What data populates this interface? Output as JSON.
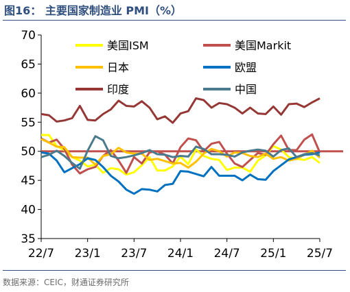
{
  "header": {
    "title": "图16：  主要国家制造业 PMI（%）"
  },
  "footer": {
    "source": "数据来源：CEIC，财通证券研究所"
  },
  "chart_data": {
    "type": "line",
    "ylim": [
      35,
      70
    ],
    "yticks": [
      35,
      40,
      45,
      50,
      55,
      60,
      65,
      70
    ],
    "x_tick_labels": [
      "22/7",
      "23/1",
      "23/7",
      "24/1",
      "24/7",
      "25/1",
      "25/7"
    ],
    "x": [
      "2022-07",
      "2022-08",
      "2022-09",
      "2022-10",
      "2022-11",
      "2022-12",
      "2023-01",
      "2023-02",
      "2023-03",
      "2023-04",
      "2023-05",
      "2023-06",
      "2023-07",
      "2023-08",
      "2023-09",
      "2023-10",
      "2023-11",
      "2023-12",
      "2024-01",
      "2024-02",
      "2024-03",
      "2024-04",
      "2024-05",
      "2024-06",
      "2024-07",
      "2024-08",
      "2024-09",
      "2024-10",
      "2024-11",
      "2024-12",
      "2025-01",
      "2025-02",
      "2025-03",
      "2025-04",
      "2025-05",
      "2025-06",
      "2025-07"
    ],
    "reference_line": 50,
    "legend_position": "top",
    "series": [
      {
        "name": "美国ISM",
        "color": "#ffff00",
        "values": [
          52.8,
          52.8,
          50.9,
          50.2,
          49.0,
          48.4,
          47.4,
          47.7,
          46.3,
          47.1,
          46.9,
          46.0,
          46.4,
          47.6,
          49.0,
          46.7,
          46.7,
          47.4,
          49.1,
          47.8,
          50.3,
          49.2,
          48.7,
          48.5,
          46.8,
          47.2,
          47.2,
          46.5,
          48.4,
          49.3,
          50.9,
          50.3,
          49.0,
          48.7,
          48.5,
          49.0,
          48.0
        ]
      },
      {
        "name": "美国Markit",
        "color": "#c0504d",
        "values": [
          52.2,
          51.5,
          52.0,
          50.4,
          47.7,
          46.2,
          46.9,
          47.3,
          49.2,
          50.2,
          48.4,
          46.3,
          49.0,
          47.9,
          49.8,
          50.0,
          49.4,
          47.9,
          50.7,
          52.2,
          51.9,
          50.0,
          51.3,
          51.6,
          49.6,
          47.9,
          47.3,
          48.5,
          49.7,
          49.4,
          51.2,
          52.7,
          50.2,
          50.2,
          52.0,
          52.9,
          49.8
        ]
      },
      {
        "name": "日本",
        "color": "#ffc000",
        "values": [
          52.1,
          51.5,
          50.8,
          50.7,
          49.0,
          48.9,
          48.9,
          47.7,
          49.2,
          49.5,
          50.6,
          49.8,
          49.6,
          49.6,
          48.5,
          48.7,
          48.3,
          47.9,
          48.0,
          47.2,
          48.2,
          49.6,
          50.4,
          50.0,
          49.1,
          49.8,
          49.7,
          49.2,
          49.0,
          49.6,
          48.7,
          49.0,
          48.4,
          48.7,
          49.4,
          50.1,
          48.9
        ]
      },
      {
        "name": "欧盟",
        "color": "#0070c0",
        "values": [
          49.8,
          49.6,
          48.4,
          46.4,
          47.1,
          47.8,
          48.8,
          48.5,
          47.3,
          45.8,
          44.8,
          43.4,
          42.7,
          43.5,
          43.4,
          43.1,
          44.2,
          44.4,
          46.6,
          46.5,
          46.1,
          45.7,
          47.3,
          45.8,
          45.8,
          45.8,
          45.0,
          46.0,
          45.2,
          45.1,
          46.6,
          47.6,
          48.6,
          49.0,
          49.4,
          49.5,
          49.8
        ]
      },
      {
        "name": "印度",
        "color": "#953735",
        "values": [
          56.4,
          56.2,
          55.1,
          55.3,
          55.7,
          57.8,
          55.4,
          55.3,
          56.4,
          57.2,
          58.7,
          57.8,
          57.7,
          58.6,
          57.5,
          55.5,
          56.0,
          54.9,
          56.5,
          56.9,
          59.1,
          58.8,
          57.5,
          58.3,
          58.1,
          57.5,
          56.5,
          57.5,
          56.5,
          56.4,
          57.7,
          56.3,
          58.1,
          58.2,
          57.6,
          58.4,
          59.1
        ]
      },
      {
        "name": "中国",
        "color": "#4a7a8c",
        "values": [
          49.0,
          49.4,
          50.1,
          49.2,
          48.0,
          47.0,
          50.1,
          52.6,
          51.9,
          49.2,
          48.8,
          49.0,
          49.3,
          49.7,
          50.2,
          49.5,
          49.4,
          49.0,
          49.2,
          49.1,
          50.8,
          50.4,
          49.5,
          49.5,
          49.4,
          49.1,
          49.8,
          50.1,
          50.3,
          50.1,
          49.1,
          50.2,
          50.5,
          49.0,
          49.5,
          49.7,
          49.3
        ]
      }
    ]
  }
}
